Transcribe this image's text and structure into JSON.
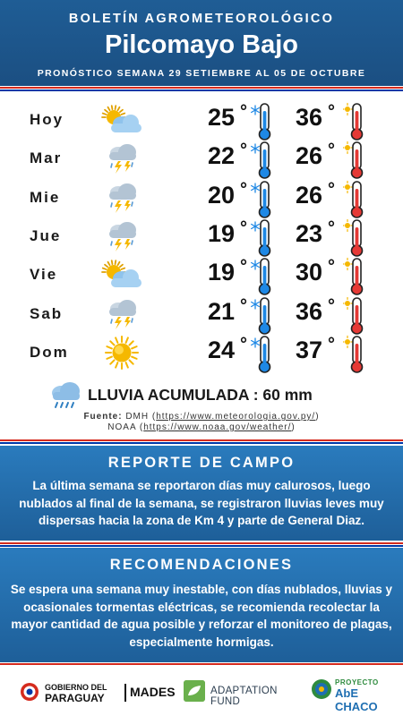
{
  "header": {
    "kicker": "BOLETÍN AGROMETEOROLÓGICO",
    "place": "Pilcomayo Bajo",
    "period": "PRONÓSTICO SEMANA 29 SETIEMBRE AL 05 DE OCTUBRE"
  },
  "forecast": [
    {
      "day": "Hoy",
      "icon": "sun-behind-cloud-icon",
      "min": "25",
      "max": "36"
    },
    {
      "day": "Mar",
      "icon": "storm-cloud-icon",
      "min": "22",
      "max": "26"
    },
    {
      "day": "Mie",
      "icon": "storm-cloud-icon",
      "min": "20",
      "max": "26"
    },
    {
      "day": "Jue",
      "icon": "storm-cloud-icon",
      "min": "19",
      "max": "23"
    },
    {
      "day": "Vie",
      "icon": "sun-behind-cloud-icon",
      "min": "19",
      "max": "30"
    },
    {
      "day": "Sab",
      "icon": "storm-cloud-icon",
      "min": "21",
      "max": "36"
    },
    {
      "day": "Dom",
      "icon": "sun-icon",
      "min": "24",
      "max": "37"
    }
  ],
  "degree_symbol": "°",
  "rain": {
    "label": "LLUVIA ACUMULADA : 60 mm",
    "icon": "rain-cloud-icon"
  },
  "sources": {
    "line1_label": "Fuente:",
    "line1_org": "DMH",
    "line1_url": "https://www.meteorologia.gov.py/",
    "line2_org": "NOAA",
    "line2_url": "https://www.noaa.gov/weather/"
  },
  "campo": {
    "title": "REPORTE DE CAMPO",
    "body": "La última semana se reportaron días muy calurosos, luego nublados al final de la semana, se registraron lluvias leves muy dispersas hacia la zona de Km 4 y parte de General Diaz."
  },
  "recomendaciones": {
    "title": "RECOMENDACIONES",
    "body": "Se espera una semana muy inestable, con días nublados, lluvias y ocasionales tormentas eléctricas, se recomienda recolectar la mayor cantidad de agua posible y reforzar el monitoreo de plagas, especialmente hormigas."
  },
  "footer": {
    "gov_line1": "GOBIERNO DEL",
    "gov_line2": "PARAGUAY",
    "mades": "MADES",
    "adaptation": "ADAPTATION FUND",
    "chaco_line1": "PROYECTO",
    "chaco_line2": "AbE CHACO"
  },
  "colors": {
    "header_blue": "#1f5d95",
    "panel_blue": "#2a7bbd",
    "flag_red": "#d52b1e",
    "flag_blue": "#0038a8",
    "cold_blue": "#1e88e5",
    "hot_red": "#e53935",
    "sun_yellow": "#f5b800"
  }
}
